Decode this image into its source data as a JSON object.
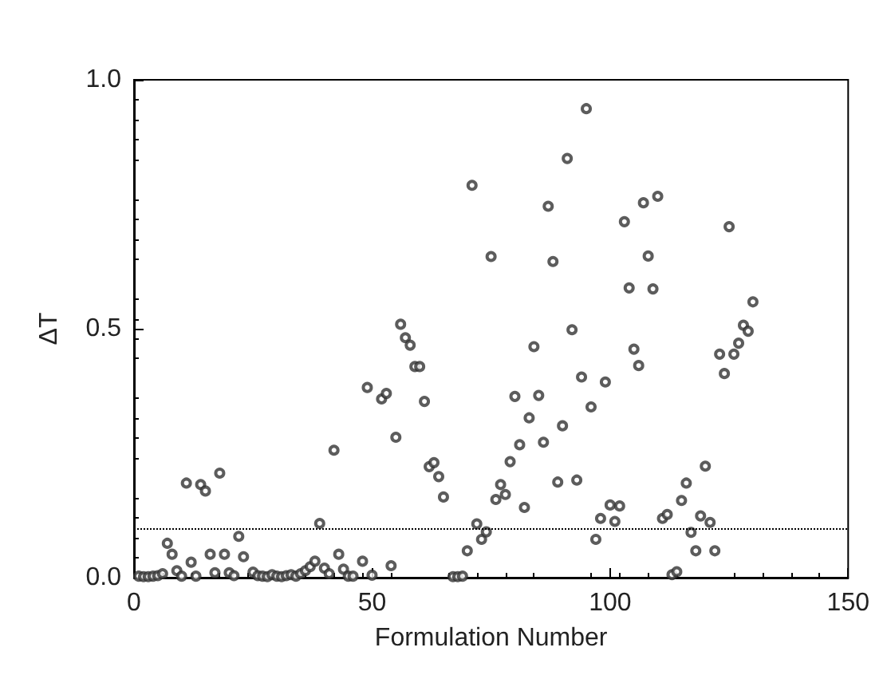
{
  "chart_data": {
    "type": "scatter",
    "xlabel": "Formulation Number",
    "ylabel": "ΔT",
    "x": [
      1,
      2,
      3,
      4,
      5,
      6,
      7,
      8,
      9,
      10,
      11,
      12,
      13,
      14,
      15,
      16,
      17,
      18,
      19,
      20,
      21,
      22,
      23,
      25,
      26,
      27,
      28,
      29,
      30,
      31,
      32,
      33,
      34,
      35,
      36,
      37,
      38,
      39,
      40,
      41,
      42,
      43,
      44,
      45,
      46,
      48,
      49,
      50,
      52,
      53,
      54,
      55,
      56,
      57,
      58,
      59,
      60,
      61,
      62,
      63,
      64,
      65,
      67,
      68,
      69,
      70,
      71,
      72,
      73,
      74,
      75,
      76,
      77,
      78,
      79,
      80,
      81,
      82,
      83,
      84,
      85,
      86,
      87,
      88,
      89,
      90,
      91,
      92,
      93,
      94,
      95,
      96,
      97,
      98,
      99,
      100,
      101,
      102,
      103,
      104,
      105,
      106,
      107,
      108,
      109,
      110,
      111,
      112,
      113,
      114,
      115,
      116,
      117,
      118,
      119,
      120,
      121,
      122,
      123,
      124,
      125,
      126,
      127,
      128,
      129,
      130
    ],
    "series": [
      {
        "color": "#333333",
        "values": [
          0.003,
          0.002,
          0.002,
          0.003,
          0.004,
          0.008,
          0.069,
          0.047,
          0.014,
          0.003,
          0.19,
          0.031,
          0.003,
          0.187,
          0.174,
          0.047,
          0.01,
          0.21,
          0.047,
          0.01,
          0.004,
          0.083,
          0.042,
          0.011,
          0.004,
          0.003,
          0.002,
          0.006,
          0.003,
          0.002,
          0.004,
          0.006,
          0.003,
          0.008,
          0.014,
          0.022,
          0.033,
          0.109,
          0.019,
          0.008,
          0.256,
          0.047,
          0.017,
          0.003,
          0.003,
          0.033,
          0.382,
          0.005,
          0.359,
          0.37,
          0.024,
          0.282,
          0.509,
          0.482,
          0.467,
          0.424,
          0.424,
          0.354,
          0.223,
          0.231,
          0.203,
          0.162,
          0.002,
          0.002,
          0.003,
          0.054,
          0.788,
          0.108,
          0.077,
          0.092,
          0.645,
          0.157,
          0.187,
          0.167,
          0.233,
          0.364,
          0.267,
          0.141,
          0.321,
          0.464,
          0.366,
          0.272,
          0.746,
          0.635,
          0.192,
          0.305,
          0.842,
          0.498,
          0.196,
          0.403,
          0.942,
          0.343,
          0.077,
          0.119,
          0.393,
          0.146,
          0.113,
          0.144,
          0.715,
          0.582,
          0.459,
          0.426,
          0.753,
          0.646,
          0.58,
          0.766,
          0.119,
          0.127,
          0.006,
          0.012,
          0.155,
          0.19,
          0.091,
          0.054,
          0.124,
          0.224,
          0.111,
          0.054,
          0.449,
          0.41,
          0.705,
          0.449,
          0.471,
          0.507,
          0.495,
          0.554
        ]
      }
    ],
    "xlim": [
      0,
      150
    ],
    "xticks": [
      0,
      50,
      100,
      150
    ],
    "ylim": [
      0,
      1
    ],
    "yticks": [
      {
        "value": 0,
        "label": "0.0"
      },
      {
        "value": 0.5,
        "label": "0.5"
      },
      {
        "value": 1,
        "label": "1.0"
      }
    ],
    "ref_lines": [
      {
        "axis": "y",
        "value": 0.1,
        "color": "#000000",
        "line_style": "dotted"
      }
    ],
    "marker": "circle",
    "grid": false
  }
}
